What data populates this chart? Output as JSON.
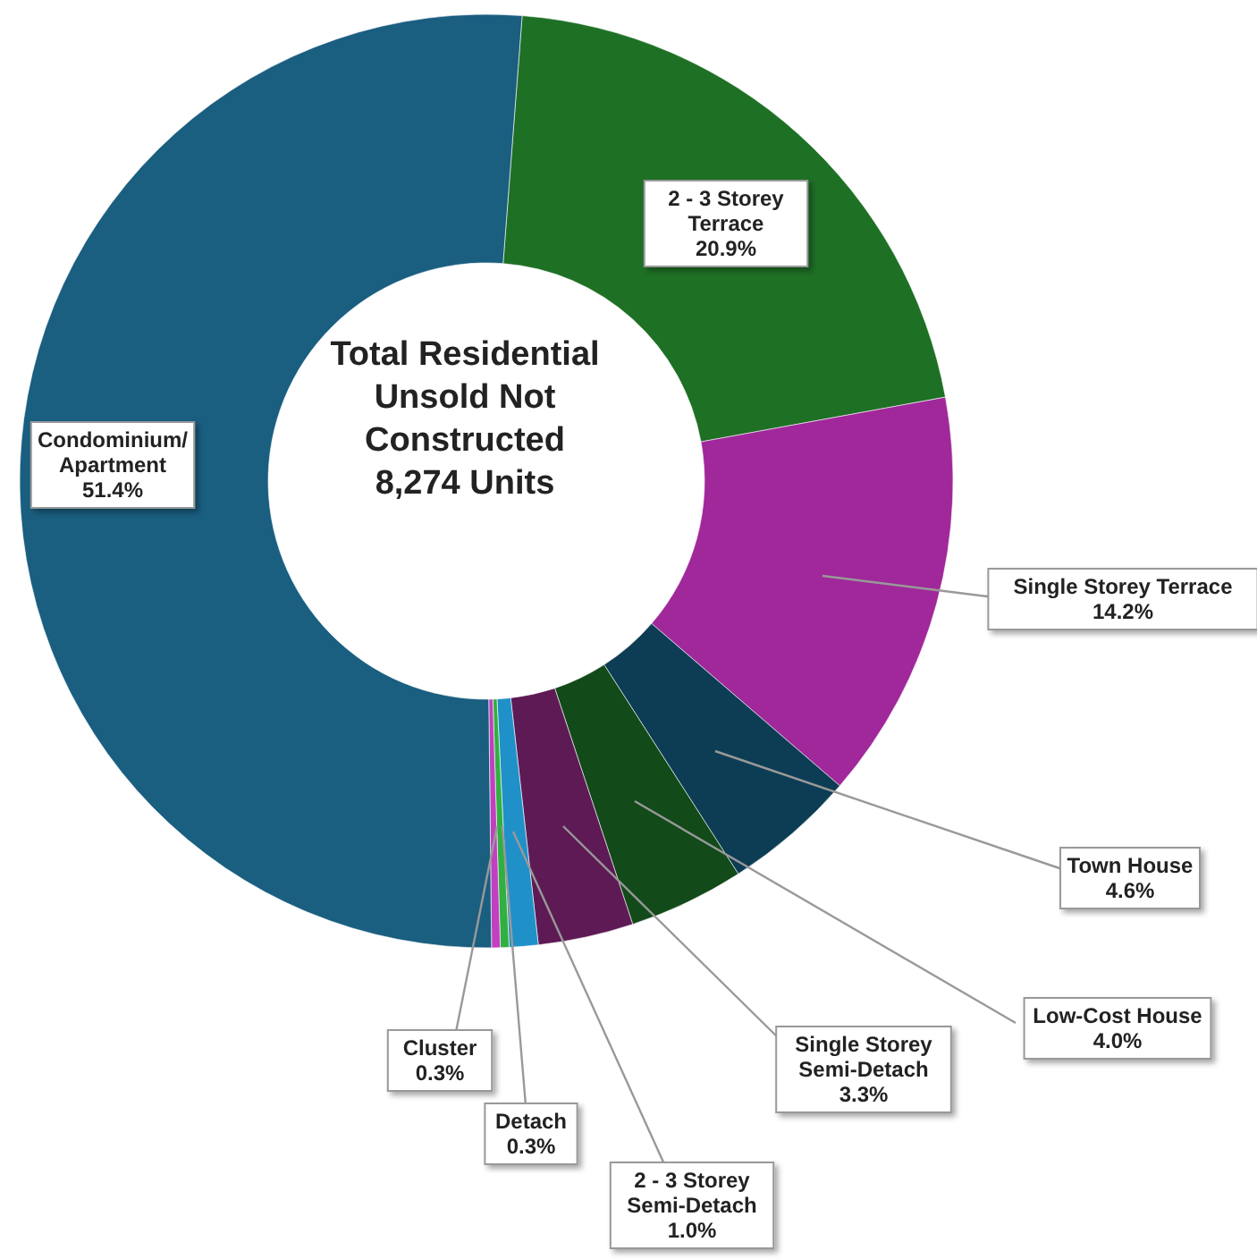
{
  "chart_data": {
    "type": "donut",
    "title": "Total Residential Unsold Not Constructed",
    "subtitle": "8,274 Units",
    "categories": [
      "2 - 3 Storey Terrace",
      "Single Storey Terrace",
      "Town House",
      "Low-Cost House",
      "Single Storey Semi-Detach",
      "2 - 3 Storey Semi-Detach",
      "Detach",
      "Cluster",
      "Condominium/Apartment"
    ],
    "values": [
      20.9,
      14.2,
      4.6,
      4.0,
      3.3,
      1.0,
      0.3,
      0.3,
      51.4
    ],
    "value_labels": [
      "20.9%",
      "14.2%",
      "4.6%",
      "4.0%",
      "3.3%",
      "1.0%",
      "0.3%",
      "0.3%",
      "51.4%"
    ],
    "colors": [
      "#1e7025",
      "#a0289a",
      "#0d3d55",
      "#124a1a",
      "#5e1a55",
      "#2090c8",
      "#30b040",
      "#c040c0",
      "#1a5e80"
    ]
  }
}
